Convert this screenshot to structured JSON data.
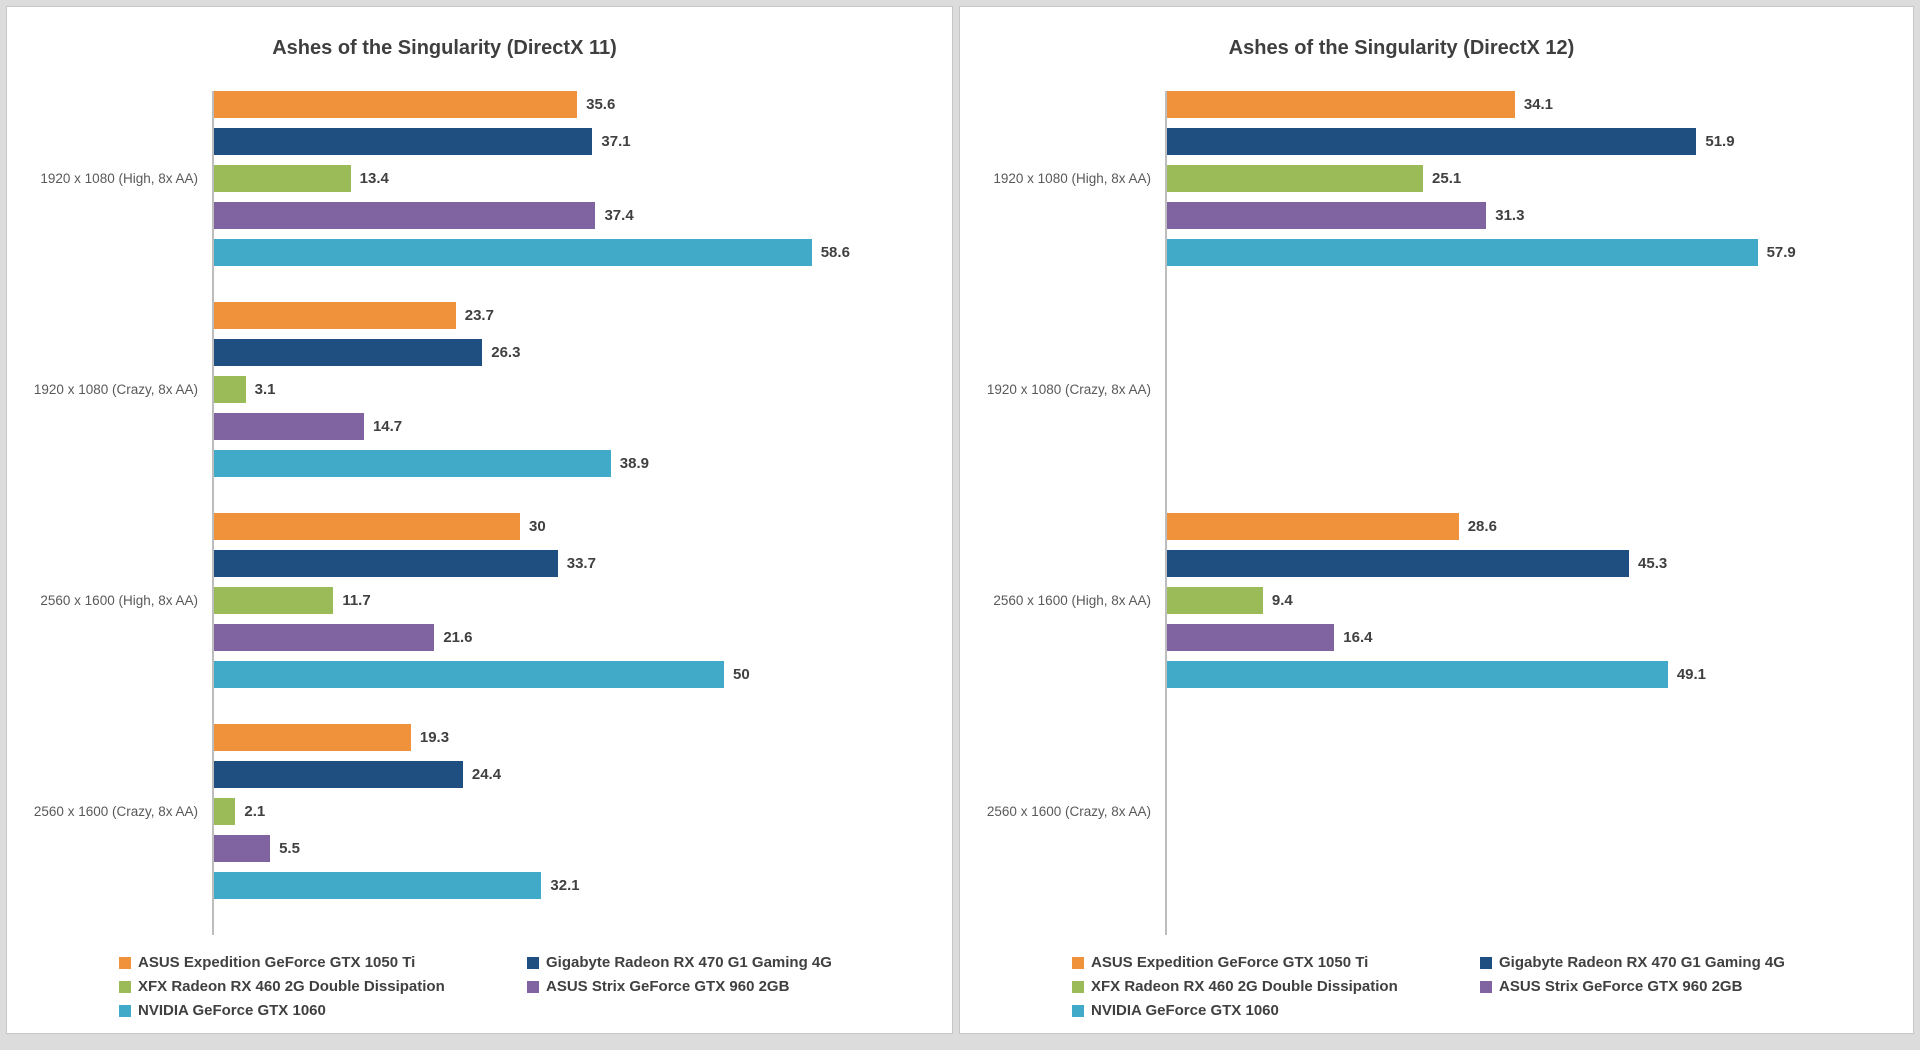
{
  "chart_data": [
    {
      "type": "bar",
      "orientation": "horizontal",
      "title": "Ashes of the Singularity (DirectX 11)",
      "categories": [
        "1920 x 1080 (High, 8x AA)",
        "1920 x 1080 (Crazy, 8x AA)",
        "2560 x 1600 (High, 8x AA)",
        "2560 x 1600 (Crazy, 8x AA)"
      ],
      "series": [
        {
          "name": "ASUS Expedition GeForce GTX 1050 Ti",
          "color": "#f0913c",
          "values": [
            35.6,
            23.7,
            30,
            19.3
          ]
        },
        {
          "name": "Gigabyte Radeon RX 470 G1 Gaming 4G",
          "color": "#1f4e80",
          "values": [
            37.1,
            26.3,
            33.7,
            24.4
          ]
        },
        {
          "name": "XFX Radeon RX 460 2G Double Dissipation",
          "color": "#9bbb59",
          "values": [
            13.4,
            3.1,
            11.7,
            2.1
          ]
        },
        {
          "name": "ASUS Strix GeForce GTX 960 2GB",
          "color": "#8064a2",
          "values": [
            37.4,
            14.7,
            21.6,
            5.5
          ]
        },
        {
          "name": "NVIDIA GeForce GTX 1060",
          "color": "#41aac8",
          "values": [
            58.6,
            38.9,
            50,
            32.1
          ]
        }
      ],
      "value_labels_shown": true,
      "gridlines": false,
      "value_axis_hidden": true,
      "legend_position": "bottom"
    },
    {
      "type": "bar",
      "orientation": "horizontal",
      "title": "Ashes of the Singularity (DirectX 12)",
      "categories": [
        "1920 x 1080 (High, 8x AA)",
        "1920 x 1080 (Crazy, 8x AA)",
        "2560 x 1600 (High, 8x AA)",
        "2560 x 1600 (Crazy, 8x AA)"
      ],
      "series": [
        {
          "name": "ASUS Expedition GeForce GTX 1050 Ti",
          "color": "#f0913c",
          "values": [
            34.1,
            null,
            28.6,
            null
          ]
        },
        {
          "name": "Gigabyte Radeon RX 470 G1 Gaming 4G",
          "color": "#1f4e80",
          "values": [
            51.9,
            null,
            45.3,
            null
          ]
        },
        {
          "name": "XFX Radeon RX 460 2G Double Dissipation",
          "color": "#9bbb59",
          "values": [
            25.1,
            null,
            9.4,
            null
          ]
        },
        {
          "name": "ASUS Strix GeForce GTX 960 2GB",
          "color": "#8064a2",
          "values": [
            31.3,
            null,
            16.4,
            null
          ]
        },
        {
          "name": "NVIDIA GeForce GTX 1060",
          "color": "#41aac8",
          "values": [
            57.9,
            null,
            49.1,
            null
          ]
        }
      ],
      "value_labels_shown": true,
      "gridlines": false,
      "value_axis_hidden": true,
      "legend_position": "bottom"
    }
  ],
  "colors": {
    "title_text": "#3f3f3f",
    "value_label_text": "#404040",
    "category_label_text": "#595959",
    "axis_line": "#bdbdbd",
    "panel_background": "#ffffff",
    "page_background": "#dcdcdc"
  }
}
